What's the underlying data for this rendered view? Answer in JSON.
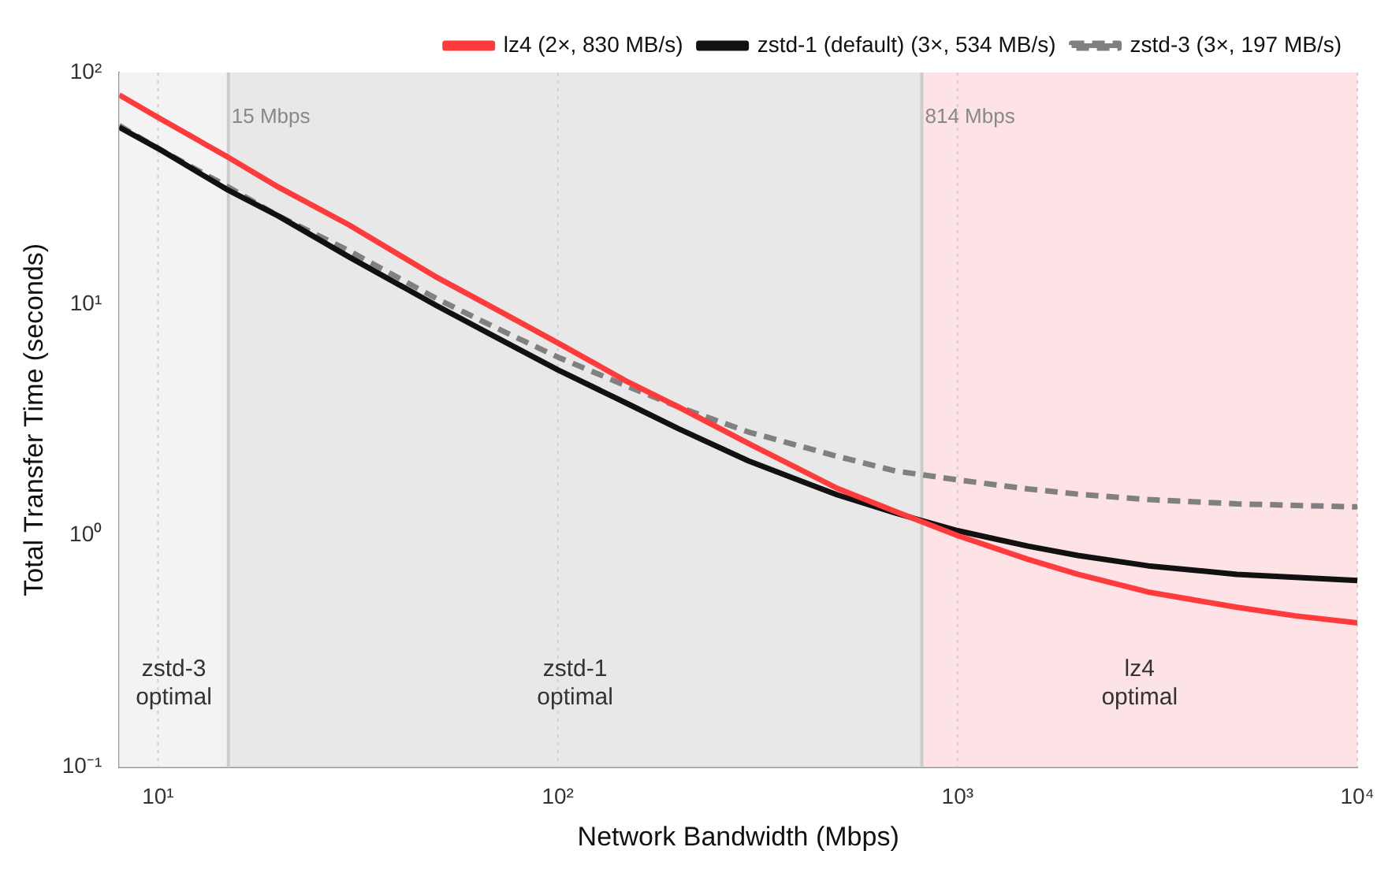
{
  "chart_data": {
    "type": "line",
    "xlabel": "Network Bandwidth (Mbps)",
    "ylabel": "Total Transfer Time (seconds)",
    "log": "xy",
    "grid": "x",
    "legend": "top right",
    "marker": "none",
    "xlim": [
      8,
      10000
    ],
    "ylim": [
      0.1,
      100
    ],
    "xticks": [
      {
        "value": 10,
        "label": "10¹"
      },
      {
        "value": 100,
        "label": "10²"
      },
      {
        "value": 1000,
        "label": "10³"
      },
      {
        "value": 10000,
        "label": "10⁴"
      }
    ],
    "yticks": [
      {
        "value": 0.1,
        "label": "10⁻¹"
      },
      {
        "value": 1,
        "label": "10⁰"
      },
      {
        "value": 10,
        "label": "10¹"
      },
      {
        "value": 100,
        "label": "10²"
      }
    ],
    "x": [
      8,
      10,
      15,
      20,
      30,
      50,
      70,
      100,
      150,
      200,
      300,
      500,
      700,
      1000,
      1500,
      2000,
      3000,
      5000,
      7000,
      10000
    ],
    "series": [
      {
        "name": "lz4 (2×, 830 MB/s)",
        "color": "#ff3b3b",
        "line_style": "solid",
        "values": [
          80,
          64,
          43,
          32,
          22,
          13,
          9.5,
          6.8,
          4.6,
          3.6,
          2.5,
          1.6,
          1.27,
          1.0,
          0.79,
          0.68,
          0.57,
          0.49,
          0.45,
          0.42
        ]
      },
      {
        "name": "zstd-1 (default) (3×, 534 MB/s)",
        "color": "#111111",
        "line_style": "solid",
        "values": [
          58,
          47,
          31,
          24,
          16,
          9.8,
          7.2,
          5.2,
          3.7,
          2.9,
          2.1,
          1.5,
          1.25,
          1.05,
          0.9,
          0.82,
          0.74,
          0.68,
          0.66,
          0.64
        ]
      },
      {
        "name": "zstd-3 (3×, 197 MB/s)",
        "color": "#808080",
        "line_style": "dashed",
        "values": [
          59,
          47,
          32,
          24,
          17,
          10.5,
          7.9,
          5.9,
          4.4,
          3.6,
          2.8,
          2.2,
          1.9,
          1.74,
          1.59,
          1.51,
          1.43,
          1.37,
          1.35,
          1.33
        ]
      }
    ],
    "bands": [
      {
        "axis": "x",
        "from": 8,
        "to": 15,
        "label": "zstd-3\noptimal",
        "color": "#f3f3f3"
      },
      {
        "axis": "x",
        "from": 15,
        "to": 814,
        "label": "zstd-1\noptimal",
        "color": "#e8e8e8"
      },
      {
        "axis": "x",
        "from": 814,
        "to": 10000,
        "label": "lz4\noptimal",
        "color": "#fde3e5"
      }
    ],
    "ref_lines": [
      {
        "axis": "x",
        "value": 15,
        "label": "15 Mbps",
        "color": "#cccccc"
      },
      {
        "axis": "x",
        "value": 814,
        "label": "814 Mbps",
        "color": "#cccccc"
      }
    ]
  }
}
